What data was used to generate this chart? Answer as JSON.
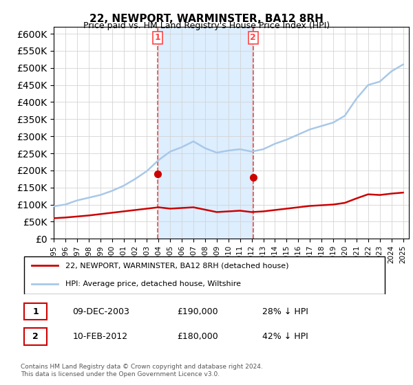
{
  "title": "22, NEWPORT, WARMINSTER, BA12 8RH",
  "subtitle": "Price paid vs. HM Land Registry's House Price Index (HPI)",
  "ylabel": "",
  "ylim": [
    0,
    620000
  ],
  "yticks": [
    0,
    50000,
    100000,
    150000,
    200000,
    250000,
    300000,
    350000,
    400000,
    450000,
    500000,
    550000,
    600000
  ],
  "xlim_start": 1995.0,
  "xlim_end": 2025.5,
  "hpi_color": "#a8c8e8",
  "price_color": "#cc0000",
  "shade_color": "#ddeeff",
  "vline_color": "#ff4444",
  "purchase1_x": 2003.94,
  "purchase1_y": 190000,
  "purchase2_x": 2012.12,
  "purchase2_y": 180000,
  "legend_label1": "22, NEWPORT, WARMINSTER, BA12 8RH (detached house)",
  "legend_label2": "HPI: Average price, detached house, Wiltshire",
  "table_row1": [
    "1",
    "09-DEC-2003",
    "£190,000",
    "28% ↓ HPI"
  ],
  "table_row2": [
    "2",
    "10-FEB-2012",
    "£180,000",
    "42% ↓ HPI"
  ],
  "footer": "Contains HM Land Registry data © Crown copyright and database right 2024.\nThis data is licensed under the Open Government Licence v3.0.",
  "hpi_years": [
    1995,
    1996,
    1997,
    1998,
    1999,
    2000,
    2001,
    2002,
    2003,
    2004,
    2005,
    2006,
    2007,
    2008,
    2009,
    2010,
    2011,
    2012,
    2013,
    2014,
    2015,
    2016,
    2017,
    2018,
    2019,
    2020,
    2021,
    2022,
    2023,
    2024,
    2025
  ],
  "hpi_values": [
    95000,
    100000,
    112000,
    120000,
    128000,
    140000,
    155000,
    175000,
    198000,
    230000,
    255000,
    268000,
    285000,
    265000,
    252000,
    258000,
    262000,
    255000,
    262000,
    278000,
    290000,
    305000,
    320000,
    330000,
    340000,
    360000,
    410000,
    450000,
    460000,
    490000,
    510000
  ],
  "price_years": [
    1995,
    1996,
    1997,
    1998,
    1999,
    2000,
    2001,
    2002,
    2003,
    2004,
    2005,
    2006,
    2007,
    2008,
    2009,
    2010,
    2011,
    2012,
    2013,
    2014,
    2015,
    2016,
    2017,
    2018,
    2019,
    2020,
    2021,
    2022,
    2023,
    2024,
    2025
  ],
  "price_values": [
    60000,
    62000,
    65000,
    68000,
    72000,
    76000,
    80000,
    84000,
    88000,
    92000,
    88000,
    90000,
    92000,
    85000,
    78000,
    80000,
    82000,
    78000,
    80000,
    84000,
    88000,
    92000,
    96000,
    98000,
    100000,
    105000,
    118000,
    130000,
    128000,
    132000,
    135000
  ]
}
